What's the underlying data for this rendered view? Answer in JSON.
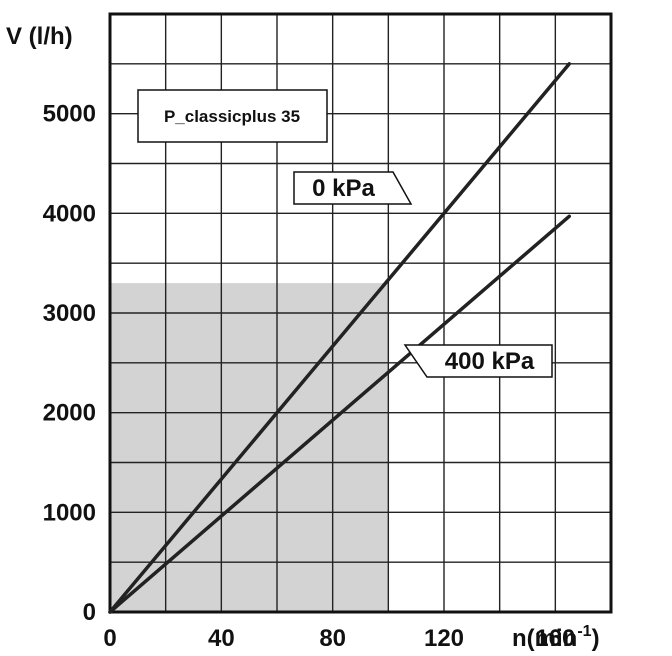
{
  "chart_data": {
    "type": "line",
    "title": "P_classicplus 35",
    "ylabel": "V (l/h)",
    "xlabel": "n(min",
    "xlabel_sup": "-1",
    "xlabel_close": ")",
    "xlim": [
      0,
      180
    ],
    "ylim": [
      0,
      6000
    ],
    "x_ticks": [
      0,
      40,
      80,
      120,
      160
    ],
    "y_ticks": [
      0,
      1000,
      2000,
      3000,
      4000,
      5000
    ],
    "grid": true,
    "shaded_region": {
      "x": [
        0,
        100
      ],
      "y": [
        0,
        3300
      ],
      "color": "#d3d3d3"
    },
    "series": [
      {
        "name": "0 kPa",
        "x": [
          0,
          165
        ],
        "y": [
          0,
          5500
        ]
      },
      {
        "name": "400 kPa",
        "x": [
          0,
          165
        ],
        "y": [
          0,
          3970
        ]
      }
    ],
    "colors": {
      "line": "#222222",
      "grid": "#222222",
      "shade": "#d3d3d3"
    }
  }
}
